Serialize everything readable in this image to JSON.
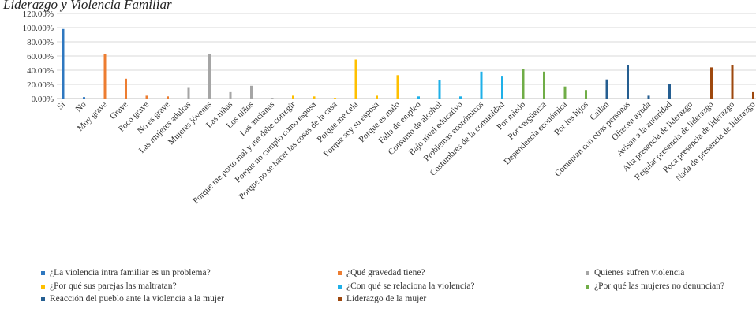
{
  "chart_data": {
    "type": "bar",
    "title": "Liderazgo y Violencia Familiar",
    "categories": [
      "Si",
      "No",
      "Muy grave",
      "Grave",
      "Poco grave",
      "No es grave",
      "Las mujeres adultas",
      "Mujeres jóvenes",
      "Las niñas",
      "Los niños",
      "Las ancianas",
      "Porque me porto mal y me debe corregir",
      "Porque no cumplo como esposa",
      "Porque no se hacer las cosas de la casa",
      "Porque me cela",
      "Porque soy su esposa",
      "Porque es malo",
      "Falta de empleo",
      "Consumo de alcohol",
      "Bajo nivel educativo",
      "Problemas económicos",
      "Costumbres de la comunidad",
      "Por miedo",
      "Por vergüenza",
      "Dependencia económica",
      "Por los hijos",
      "Callan",
      "Comentan con otras personas",
      "Ofrecen ayuda",
      "Avisan a la autoridad",
      "Alta presencia de liderazgo",
      "Regular presencia de liderazgo",
      "Poca presencia de liderazgo",
      "Nada de presencia de liderazgo"
    ],
    "series": [
      {
        "name": "¿La violencia intra familiar es un problema?",
        "color": "#2f78c0",
        "values": [
          98,
          2,
          null,
          null,
          null,
          null,
          null,
          null,
          null,
          null,
          null,
          null,
          null,
          null,
          null,
          null,
          null,
          null,
          null,
          null,
          null,
          null,
          null,
          null,
          null,
          null,
          null,
          null,
          null,
          null,
          null,
          null,
          null,
          null
        ]
      },
      {
        "name": "¿Qué gravedad tiene?",
        "color": "#ed7d31",
        "values": [
          null,
          null,
          63,
          28,
          4,
          3,
          null,
          null,
          null,
          null,
          null,
          null,
          null,
          null,
          null,
          null,
          null,
          null,
          null,
          null,
          null,
          null,
          null,
          null,
          null,
          null,
          null,
          null,
          null,
          null,
          null,
          null,
          null,
          null
        ]
      },
      {
        "name": "Quienes sufren violencia",
        "color": "#a5a5a5",
        "values": [
          null,
          null,
          null,
          null,
          null,
          null,
          15,
          63,
          9,
          18,
          1,
          null,
          null,
          null,
          null,
          null,
          null,
          null,
          null,
          null,
          null,
          null,
          null,
          null,
          null,
          null,
          null,
          null,
          null,
          null,
          null,
          null,
          null,
          null
        ]
      },
      {
        "name": "¿Por qué sus parejas las maltratan?",
        "color": "#ffc000",
        "values": [
          null,
          null,
          null,
          null,
          null,
          null,
          null,
          null,
          null,
          null,
          null,
          4,
          3,
          1,
          55,
          4,
          33,
          null,
          null,
          null,
          null,
          null,
          null,
          null,
          null,
          null,
          null,
          null,
          null,
          null,
          null,
          null,
          null,
          null
        ]
      },
      {
        "name": "¿Con qué se relaciona la violencia?",
        "color": "#1fb0e8",
        "values": [
          null,
          null,
          null,
          null,
          null,
          null,
          null,
          null,
          null,
          null,
          null,
          null,
          null,
          null,
          null,
          null,
          null,
          3,
          26,
          3,
          38,
          31,
          null,
          null,
          null,
          null,
          null,
          null,
          null,
          null,
          null,
          null,
          null,
          null
        ]
      },
      {
        "name": "¿Por qué las mujeres no denuncian?",
        "color": "#70ad47",
        "values": [
          null,
          null,
          null,
          null,
          null,
          null,
          null,
          null,
          null,
          null,
          null,
          null,
          null,
          null,
          null,
          null,
          null,
          null,
          null,
          null,
          null,
          null,
          42,
          38,
          17,
          12,
          null,
          null,
          null,
          null,
          null,
          null,
          null,
          null
        ]
      },
      {
        "name": "Reacción del pueblo ante la violencia a la mujer",
        "color": "#255e91",
        "values": [
          null,
          null,
          null,
          null,
          null,
          null,
          null,
          null,
          null,
          null,
          null,
          null,
          null,
          null,
          null,
          null,
          null,
          null,
          null,
          null,
          null,
          null,
          null,
          null,
          null,
          null,
          27,
          47,
          4,
          20,
          null,
          null,
          null,
          null
        ]
      },
      {
        "name": "Liderazgo de la mujer",
        "color": "#9e480e",
        "values": [
          null,
          null,
          null,
          null,
          null,
          null,
          null,
          null,
          null,
          null,
          null,
          null,
          null,
          null,
          null,
          null,
          null,
          null,
          null,
          null,
          null,
          null,
          null,
          null,
          null,
          null,
          null,
          null,
          null,
          null,
          0,
          44,
          47,
          9
        ]
      }
    ],
    "ylim": [
      0,
      120
    ],
    "yticks": [
      {
        "value": 0,
        "label": "0.00%"
      },
      {
        "value": 20,
        "label": "20.00%"
      },
      {
        "value": 40,
        "label": "40.00%"
      },
      {
        "value": 60,
        "label": "60.00%"
      },
      {
        "value": 80,
        "label": "80.00%"
      },
      {
        "value": 100,
        "label": "100.00%"
      },
      {
        "value": 120,
        "label": "120.00%"
      }
    ],
    "grid": true
  }
}
